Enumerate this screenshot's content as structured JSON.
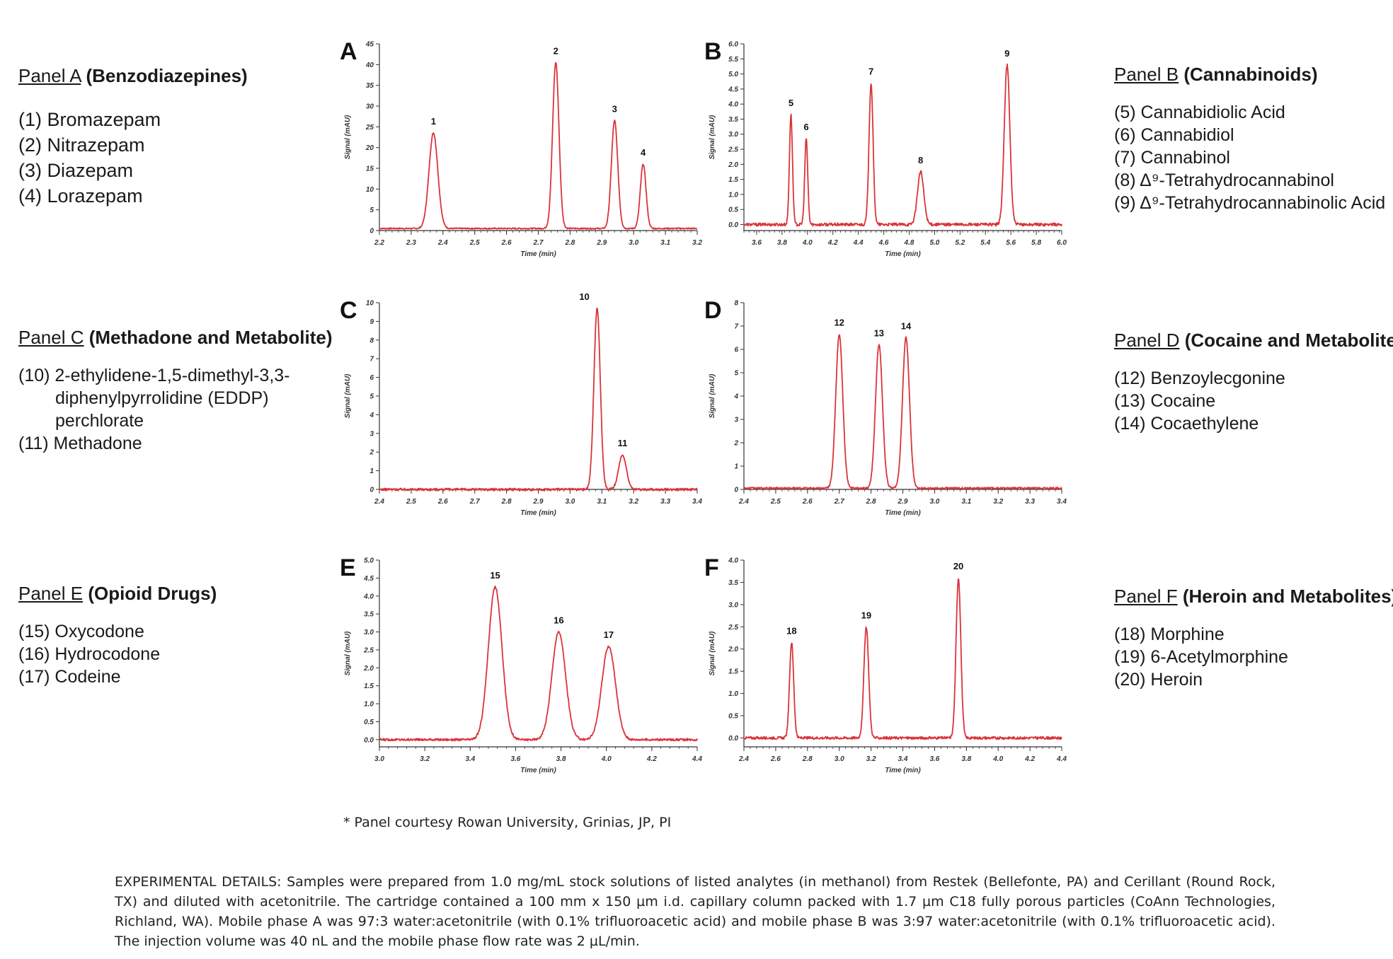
{
  "legends": {
    "A": {
      "panel": "Panel A",
      "class": "(Benzodiazepines)",
      "items": [
        "(1) Bromazepam",
        "(2) Nitrazepam",
        "(3) Diazepam",
        "(4) Lorazepam"
      ]
    },
    "B": {
      "panel": "Panel B",
      "class": "(Cannabinoids)",
      "items": [
        "(5) Cannabidiolic Acid",
        "(6) Cannabidiol",
        "(7) Cannabinol",
        "(8) Δ⁹-Tetrahydrocannabinol",
        "(9) Δ⁹-Tetrahydrocannabinolic  Acid"
      ]
    },
    "C": {
      "panel": "Panel C",
      "class": "(Methadone and Metabolite)",
      "item1_lead": "(10) 2-ethylidene-1,5-dimethyl-3,3-",
      "item1_cont1": "diphenylpyrrolidine  (EDDP)",
      "item1_cont2": "perchlorate",
      "item2": "(11) Methadone"
    },
    "D": {
      "panel": "Panel D",
      "class": "(Cocaine and Metabolites)",
      "items": [
        "(12) Benzoylecgonine",
        "(13) Cocaine",
        "(14) Cocaethylene"
      ]
    },
    "E": {
      "panel": "Panel E",
      "class": "(Opioid Drugs)",
      "items": [
        "(15) Oxycodone",
        "(16) Hydrocodone",
        "(17) Codeine"
      ]
    },
    "F": {
      "panel": "Panel F",
      "class": "(Heroin and Metabolites)",
      "items": [
        "(18) Morphine",
        "(19) 6-Acetylmorphine",
        "(20) Heroin"
      ]
    }
  },
  "footnote": "* Panel courtesy Rowan University,  Grinias, JP, PI",
  "experimental": "EXPERIMENTAL  DETAILS:  Samples were prepared from 1.0 mg/mL stock solutions of listed analytes (in methanol) from Restek (Bellefonte, PA) and Cerillant (Round Rock, TX) and diluted with acetonitrile. The cartridge contained a 100 mm x 150 µm i.d. capillary column packed with 1.7 µm C18 fully porous particles (CoAnn Technologies, Richland, WA). Mobile phase A was 97:3 water:acetonitrile (with 0.1% trifluoroacetic acid) and mobile phase B was 3:97 water:acetonitrile (with 0.1% trifluoroacetic acid). The injection volume was 40 nL and the mobile phase flow rate was 2 µL/min.",
  "colors": {
    "trace": "#d9343b",
    "axis": "#333333"
  },
  "chart_data": [
    {
      "id": "A",
      "type": "line",
      "panel_label": "A",
      "xlabel": "Time (min)",
      "ylabel": "Signal (mAU)",
      "xlim": [
        2.2,
        3.2
      ],
      "xticks": [
        2.2,
        2.3,
        2.4,
        2.5,
        2.6,
        2.7,
        2.8,
        2.9,
        3.0,
        3.1,
        3.2
      ],
      "ylim": [
        0,
        45
      ],
      "yticks": [
        0,
        5,
        10,
        15,
        20,
        25,
        30,
        35,
        40,
        45
      ],
      "baseline": 0.5,
      "noise": 0.15,
      "peaks": [
        {
          "label": "1",
          "time": 2.37,
          "height": 23,
          "width": 0.014
        },
        {
          "label": "2",
          "time": 2.755,
          "height": 40,
          "width": 0.01
        },
        {
          "label": "3",
          "time": 2.94,
          "height": 26,
          "width": 0.01
        },
        {
          "label": "4",
          "time": 3.03,
          "height": 15.5,
          "width": 0.009
        }
      ]
    },
    {
      "id": "B",
      "type": "line",
      "panel_label": "B",
      "xlabel": "Time (min)",
      "ylabel": "Signal (mAU)",
      "xlim": [
        3.5,
        6.0
      ],
      "xticks": [
        3.6,
        3.8,
        4.0,
        4.2,
        4.4,
        4.6,
        4.8,
        5.0,
        5.2,
        5.4,
        5.6,
        5.8,
        6.0
      ],
      "ylim": [
        -0.2,
        6.0
      ],
      "yticks": [
        0.0,
        0.5,
        1.0,
        1.5,
        2.0,
        2.5,
        3.0,
        3.5,
        4.0,
        4.5,
        5.0,
        5.5,
        6.0
      ],
      "baseline": 0.0,
      "noise": 0.05,
      "peaks": [
        {
          "label": "5",
          "time": 3.87,
          "height": 3.65,
          "width": 0.012
        },
        {
          "label": "6",
          "time": 3.99,
          "height": 2.85,
          "width": 0.012
        },
        {
          "label": "7",
          "time": 4.5,
          "height": 4.7,
          "width": 0.016
        },
        {
          "label": "8",
          "time": 4.89,
          "height": 1.75,
          "width": 0.025
        },
        {
          "label": "9",
          "time": 5.57,
          "height": 5.3,
          "width": 0.022
        }
      ]
    },
    {
      "id": "C",
      "type": "line",
      "panel_label": "C",
      "xlabel": "Time (min)",
      "ylabel": "Signal (mAU)",
      "xlim": [
        2.4,
        3.4
      ],
      "xticks": [
        2.4,
        2.5,
        2.6,
        2.7,
        2.8,
        2.9,
        3.0,
        3.1,
        3.2,
        3.3,
        3.4
      ],
      "ylim": [
        0,
        10
      ],
      "yticks": [
        0,
        1,
        2,
        3,
        4,
        5,
        6,
        7,
        8,
        9,
        10
      ],
      "baseline": 0.0,
      "noise": 0.06,
      "peaks": [
        {
          "label": "10",
          "time": 3.085,
          "height": 9.7,
          "width": 0.01
        },
        {
          "label": "11",
          "time": 3.165,
          "height": 1.85,
          "width": 0.012
        }
      ]
    },
    {
      "id": "D",
      "type": "line",
      "panel_label": "D",
      "xlabel": "Time (min)",
      "ylabel": "Signal (mAU)",
      "xlim": [
        2.4,
        3.4
      ],
      "xticks": [
        2.4,
        2.5,
        2.6,
        2.7,
        2.8,
        2.9,
        3.0,
        3.1,
        3.2,
        3.3,
        3.4
      ],
      "ylim": [
        0,
        8
      ],
      "yticks": [
        0,
        1,
        2,
        3,
        4,
        5,
        6,
        7,
        8
      ],
      "baseline": 0.05,
      "noise": 0.04,
      "peaks": [
        {
          "label": "12",
          "time": 2.7,
          "height": 6.6,
          "width": 0.011
        },
        {
          "label": "13",
          "time": 2.825,
          "height": 6.15,
          "width": 0.011
        },
        {
          "label": "14",
          "time": 2.91,
          "height": 6.45,
          "width": 0.011
        }
      ]
    },
    {
      "id": "E",
      "type": "line",
      "panel_label": "E",
      "xlabel": "Time (min)",
      "ylabel": "Signal (mAU)",
      "xlim": [
        3.0,
        4.4
      ],
      "xticks": [
        3.0,
        3.2,
        3.4,
        3.6,
        3.8,
        4.0,
        4.2,
        4.4
      ],
      "ylim": [
        -0.2,
        5.0
      ],
      "yticks": [
        0.0,
        0.5,
        1.0,
        1.5,
        2.0,
        2.5,
        3.0,
        3.5,
        4.0,
        4.5,
        5.0
      ],
      "baseline": 0.0,
      "noise": 0.03,
      "peaks": [
        {
          "label": "15",
          "time": 3.51,
          "height": 4.25,
          "width": 0.03
        },
        {
          "label": "16",
          "time": 3.79,
          "height": 3.0,
          "width": 0.03
        },
        {
          "label": "17",
          "time": 4.01,
          "height": 2.6,
          "width": 0.03
        }
      ]
    },
    {
      "id": "F",
      "type": "line",
      "panel_label": "F",
      "xlabel": "Time (min)",
      "ylabel": "Signal (mAU)",
      "xlim": [
        2.4,
        4.4
      ],
      "xticks": [
        2.4,
        2.6,
        2.8,
        3.0,
        3.2,
        3.4,
        3.6,
        3.8,
        4.0,
        4.2,
        4.4
      ],
      "ylim": [
        -0.2,
        4.0
      ],
      "yticks": [
        0.0,
        0.5,
        1.0,
        1.5,
        2.0,
        2.5,
        3.0,
        3.5,
        4.0
      ],
      "baseline": 0.0,
      "noise": 0.03,
      "peaks": [
        {
          "label": "18",
          "time": 2.7,
          "height": 2.15,
          "width": 0.013
        },
        {
          "label": "19",
          "time": 3.17,
          "height": 2.5,
          "width": 0.015
        },
        {
          "label": "20",
          "time": 3.75,
          "height": 3.6,
          "width": 0.015
        }
      ]
    }
  ]
}
